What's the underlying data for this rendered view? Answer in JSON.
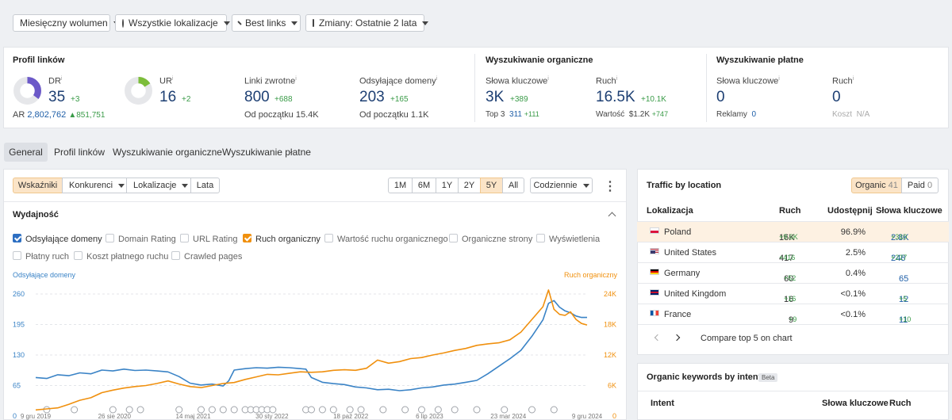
{
  "filters": {
    "volume": "Miesięczny wolumen",
    "locations": "Wszystkie lokalizacje",
    "links": "Best links",
    "changes": "Zmiany: Ostatnie 2 lata"
  },
  "profile": {
    "title": "Profil linków",
    "dr": {
      "label": "DR",
      "value": "35",
      "delta": "+3",
      "fraction": 0.35
    },
    "ar": {
      "label": "AR",
      "value": "2,802,762",
      "delta": "851,751"
    },
    "ur": {
      "label": "UR",
      "value": "16",
      "delta": "+2",
      "fraction": 0.16
    },
    "backlinks": {
      "label": "Linki zwrotne",
      "value": "800",
      "delta": "+688",
      "sub_label": "Od początku",
      "sub_value": "15.4K"
    },
    "refdomains": {
      "label": "Odsyłające domeny",
      "value": "203",
      "delta": "+165",
      "sub_label": "Od początku",
      "sub_value": "1.1K"
    }
  },
  "organic": {
    "title": "Wyszukiwanie organiczne",
    "keywords": {
      "label": "Słowa kluczowe",
      "value": "3K",
      "delta": "+389",
      "sub_label": "Top 3",
      "sub_value": "311",
      "sub_delta": "+111"
    },
    "traffic": {
      "label": "Ruch",
      "value": "16.5K",
      "delta": "+10.1K",
      "sub_label": "Wartość",
      "sub_value": "$1.2K",
      "sub_delta": "+747"
    }
  },
  "paid": {
    "title": "Wyszukiwanie płatne",
    "keywords": {
      "label": "Słowa kluczowe",
      "value": "0",
      "sub_label": "Reklamy",
      "sub_value": "0"
    },
    "traffic": {
      "label": "Ruch",
      "value": "0",
      "sub_label": "Koszt",
      "sub_value": "N/A"
    }
  },
  "tabs": [
    "General",
    "Profil linków",
    "Wyszukiwanie organiczne",
    "Wyszukiwanie płatne"
  ],
  "chart_toolbar": {
    "views": [
      "Wskaźniki",
      "Konkurenci",
      "Lokalizacje",
      "Lata"
    ],
    "ranges": [
      "1M",
      "6M",
      "1Y",
      "2Y",
      "5Y",
      "All"
    ],
    "active_range": "5Y",
    "interval": "Codziennie",
    "more": "⋮"
  },
  "performance": {
    "title": "Wydajność",
    "metrics": [
      {
        "label": "Odsyłające domeny",
        "checked": true,
        "color": "#2d6fc2"
      },
      {
        "label": "Domain Rating",
        "checked": false
      },
      {
        "label": "URL Rating",
        "checked": false
      },
      {
        "label": "Ruch organiczny",
        "checked": true,
        "color": "#f0900e"
      },
      {
        "label": "Wartość ruchu organicznego",
        "checked": false
      },
      {
        "label": "Organiczne strony",
        "checked": false
      },
      {
        "label": "Wyświetlenia",
        "checked": false
      },
      {
        "label": "Płatny ruch",
        "checked": false
      },
      {
        "label": "Koszt płatnego ruchu",
        "checked": false
      },
      {
        "label": "Crawled pages",
        "checked": false
      }
    ]
  },
  "chart_data": {
    "type": "line",
    "left_axis_title": "Odsyłające domeny",
    "right_axis_title": "Ruch organiczny",
    "left_ticks": [
      "260",
      "195",
      "130",
      "65",
      "0"
    ],
    "right_ticks": [
      "24K",
      "18K",
      "12K",
      "6K",
      "0"
    ],
    "x_ticks": [
      "9 gru 2019",
      "26 sie 2020",
      "14 maj 2021",
      "30 sty 2022",
      "18 paź 2022",
      "6 lip 2023",
      "23 mar 2024",
      "9 gru 2024"
    ],
    "left_ylim": [
      0,
      260
    ],
    "right_ylim": [
      0,
      24000
    ],
    "series": [
      {
        "name": "Odsyłające domeny",
        "axis": "left",
        "color": "#3a83c6",
        "points": [
          [
            0,
            82
          ],
          [
            0.02,
            80
          ],
          [
            0.04,
            88
          ],
          [
            0.06,
            86
          ],
          [
            0.08,
            92
          ],
          [
            0.1,
            90
          ],
          [
            0.12,
            98
          ],
          [
            0.14,
            96
          ],
          [
            0.16,
            100
          ],
          [
            0.18,
            97
          ],
          [
            0.2,
            98
          ],
          [
            0.22,
            96
          ],
          [
            0.24,
            94
          ],
          [
            0.26,
            84
          ],
          [
            0.28,
            70
          ],
          [
            0.3,
            66
          ],
          [
            0.32,
            68
          ],
          [
            0.34,
            64
          ],
          [
            0.35,
            75
          ],
          [
            0.36,
            98
          ],
          [
            0.38,
            101
          ],
          [
            0.4,
            103
          ],
          [
            0.42,
            102
          ],
          [
            0.44,
            104
          ],
          [
            0.46,
            103
          ],
          [
            0.48,
            101
          ],
          [
            0.49,
            100
          ],
          [
            0.5,
            82
          ],
          [
            0.52,
            72
          ],
          [
            0.54,
            69
          ],
          [
            0.56,
            67
          ],
          [
            0.58,
            62
          ],
          [
            0.6,
            60
          ],
          [
            0.62,
            56
          ],
          [
            0.64,
            57
          ],
          [
            0.66,
            54
          ],
          [
            0.68,
            56
          ],
          [
            0.7,
            60
          ],
          [
            0.72,
            62
          ],
          [
            0.74,
            66
          ],
          [
            0.76,
            68
          ],
          [
            0.78,
            72
          ],
          [
            0.8,
            76
          ],
          [
            0.82,
            90
          ],
          [
            0.84,
            106
          ],
          [
            0.86,
            122
          ],
          [
            0.88,
            140
          ],
          [
            0.9,
            170
          ],
          [
            0.92,
            205
          ],
          [
            0.93,
            240
          ],
          [
            0.94,
            246
          ],
          [
            0.95,
            232
          ],
          [
            0.96,
            224
          ],
          [
            0.97,
            220
          ],
          [
            0.98,
            213
          ],
          [
            0.99,
            210
          ],
          [
            1.0,
            210
          ]
        ]
      },
      {
        "name": "Ruch organiczny",
        "axis": "right",
        "color": "#f0900e",
        "points": [
          [
            0,
            1200
          ],
          [
            0.02,
            1400
          ],
          [
            0.04,
            1600
          ],
          [
            0.06,
            2300
          ],
          [
            0.08,
            3100
          ],
          [
            0.1,
            3600
          ],
          [
            0.12,
            4600
          ],
          [
            0.14,
            5100
          ],
          [
            0.16,
            5500
          ],
          [
            0.18,
            5800
          ],
          [
            0.2,
            6000
          ],
          [
            0.22,
            6400
          ],
          [
            0.24,
            6900
          ],
          [
            0.26,
            6300
          ],
          [
            0.28,
            5800
          ],
          [
            0.3,
            5600
          ],
          [
            0.32,
            6000
          ],
          [
            0.34,
            6400
          ],
          [
            0.36,
            6600
          ],
          [
            0.38,
            7200
          ],
          [
            0.4,
            7700
          ],
          [
            0.42,
            8200
          ],
          [
            0.44,
            8100
          ],
          [
            0.46,
            8400
          ],
          [
            0.48,
            8700
          ],
          [
            0.5,
            8600
          ],
          [
            0.52,
            8700
          ],
          [
            0.54,
            9000
          ],
          [
            0.56,
            9100
          ],
          [
            0.58,
            9000
          ],
          [
            0.6,
            9400
          ],
          [
            0.62,
            11000
          ],
          [
            0.64,
            10400
          ],
          [
            0.66,
            10700
          ],
          [
            0.68,
            11300
          ],
          [
            0.7,
            11500
          ],
          [
            0.72,
            12000
          ],
          [
            0.74,
            12400
          ],
          [
            0.76,
            12900
          ],
          [
            0.78,
            13300
          ],
          [
            0.8,
            13900
          ],
          [
            0.82,
            14200
          ],
          [
            0.84,
            14400
          ],
          [
            0.86,
            15000
          ],
          [
            0.88,
            16500
          ],
          [
            0.9,
            19000
          ],
          [
            0.92,
            21500
          ],
          [
            0.93,
            24800
          ],
          [
            0.94,
            21000
          ],
          [
            0.95,
            20000
          ],
          [
            0.96,
            19800
          ],
          [
            0.97,
            20500
          ],
          [
            0.98,
            19000
          ],
          [
            0.99,
            18200
          ],
          [
            1.0,
            17900
          ]
        ]
      }
    ]
  },
  "traffic_location": {
    "title": "Traffic by location",
    "organic_label": "Organic",
    "organic_count": "41",
    "paid_label": "Paid",
    "paid_count": "0",
    "headers": [
      "Lokalizacja",
      "Ruch",
      "Udostępnij",
      "Słowa kluczowe"
    ],
    "rows": [
      {
        "country": "Poland",
        "traffic": "16K",
        "traffic_delta": "+9.6K",
        "share": "96.9%",
        "keywords": "2.8K",
        "kw_delta": "+310",
        "flag": [
          "#ffffff",
          "#dc143c"
        ]
      },
      {
        "country": "United States",
        "traffic": "417",
        "traffic_delta": "+416",
        "share": "2.5%",
        "keywords": "248",
        "kw_delta": "+227",
        "flag": [
          "#3c3b6e",
          "#b22234"
        ]
      },
      {
        "country": "Germany",
        "traffic": "60",
        "traffic_delta": "+52",
        "share": "0.4%",
        "keywords": "65",
        "kw_delta": "",
        "flag": [
          "#000000",
          "#dd0000",
          "#ffce00"
        ]
      },
      {
        "country": "United Kingdom",
        "traffic": "16",
        "traffic_delta": "+16",
        "share": "<0.1%",
        "keywords": "12",
        "kw_delta": "+5",
        "flag": [
          "#012169",
          "#c8102e"
        ]
      },
      {
        "country": "France",
        "traffic": "9",
        "traffic_delta": "+9",
        "share": "<0.1%",
        "keywords": "11",
        "kw_delta": "+10",
        "flag": [
          "#0055a4",
          "#ffffff",
          "#ef4135"
        ]
      }
    ],
    "compare": "Compare top 5 on chart"
  },
  "intent": {
    "title": "Organic keywords by intent",
    "badge": "Beta",
    "headers": [
      "Intent",
      "Słowa kluczowe",
      "Ruch"
    ]
  }
}
